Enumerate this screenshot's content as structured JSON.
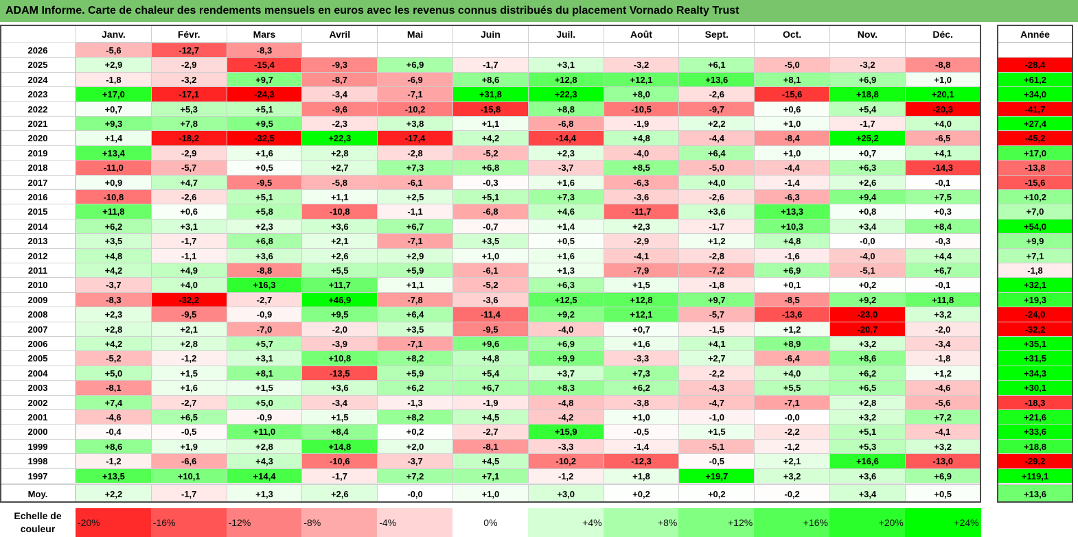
{
  "title": "ADAM Informe. Carte de chaleur des rendements mensuels en euros avec les revenus connus distribués du placement Vornado Realty Trust",
  "chart_data": {
    "type": "heatmap",
    "columns": [
      "Janv.",
      "Févr.",
      "Mars",
      "Avril",
      "Mai",
      "Juin",
      "Juil.",
      "Août",
      "Sept.",
      "Oct.",
      "Nov.",
      "Déc."
    ],
    "year_header": "Année",
    "rows": [
      {
        "year": "2026",
        "months": [
          "-5,6",
          "-12,7",
          "-8,3",
          "",
          "",
          "",
          "",
          "",
          "",
          "",
          "",
          ""
        ],
        "annual": ""
      },
      {
        "year": "2025",
        "months": [
          "+2,9",
          "-2,9",
          "-15,4",
          "-9,3",
          "+6,9",
          "-1,7",
          "+3,1",
          "-3,2",
          "+6,1",
          "-5,0",
          "-3,2",
          "-8,8"
        ],
        "annual": "-28,4"
      },
      {
        "year": "2024",
        "months": [
          "-1,8",
          "-3,2",
          "+9,7",
          "-8,7",
          "-6,9",
          "+8,6",
          "+12,8",
          "+12,1",
          "+13,6",
          "+8,1",
          "+6,9",
          "+1,0"
        ],
        "annual": "+61,2"
      },
      {
        "year": "2023",
        "months": [
          "+17,0",
          "-17,1",
          "-24,3",
          "-3,4",
          "-7,1",
          "+31,8",
          "+22,3",
          "+8,0",
          "-2,6",
          "-15,6",
          "+18,8",
          "+20,1"
        ],
        "annual": "+34,0"
      },
      {
        "year": "2022",
        "months": [
          "+0,7",
          "+5,3",
          "+5,1",
          "-9,6",
          "-10,2",
          "-15,8",
          "+8,8",
          "-10,5",
          "-9,7",
          "+0,6",
          "+5,4",
          "-20,3"
        ],
        "annual": "-41,7"
      },
      {
        "year": "2021",
        "months": [
          "+9,3",
          "+7,8",
          "+9,5",
          "-2,3",
          "+3,8",
          "+1,1",
          "-6,8",
          "-1,9",
          "+2,2",
          "+1,0",
          "-1,7",
          "+4,0"
        ],
        "annual": "+27,4"
      },
      {
        "year": "2020",
        "months": [
          "+1,4",
          "-18,2",
          "-32,5",
          "+22,3",
          "-17,4",
          "+4,2",
          "-14,4",
          "+4,8",
          "-4,4",
          "-8,4",
          "+25,2",
          "-6,5"
        ],
        "annual": "-45,2"
      },
      {
        "year": "2019",
        "months": [
          "+13,4",
          "-2,9",
          "+1,6",
          "+2,8",
          "-2,8",
          "-5,2",
          "+2,3",
          "-4,0",
          "+6,4",
          "+1,0",
          "+0,7",
          "+4,1"
        ],
        "annual": "+17,0"
      },
      {
        "year": "2018",
        "months": [
          "-11,0",
          "-5,7",
          "+0,5",
          "+2,7",
          "+7,3",
          "+6,8",
          "-3,7",
          "+8,5",
          "-5,0",
          "-4,4",
          "+6,3",
          "-14,3"
        ],
        "annual": "-13,8"
      },
      {
        "year": "2017",
        "months": [
          "+0,9",
          "+4,7",
          "-9,5",
          "-5,8",
          "-6,1",
          "-0,3",
          "+1,6",
          "-6,3",
          "+4,0",
          "-1,4",
          "+2,6",
          "-0,1"
        ],
        "annual": "-15,6"
      },
      {
        "year": "2016",
        "months": [
          "-10,8",
          "-2,6",
          "+5,1",
          "+1,1",
          "+2,5",
          "+5,1",
          "+7,3",
          "-3,6",
          "-2,6",
          "-6,3",
          "+9,4",
          "+7,5"
        ],
        "annual": "+10,2"
      },
      {
        "year": "2015",
        "months": [
          "+11,8",
          "+0,6",
          "+5,8",
          "-10,8",
          "-1,1",
          "-6,8",
          "+4,6",
          "-11,7",
          "+3,6",
          "+13,3",
          "+0,8",
          "+0,3"
        ],
        "annual": "+7,0"
      },
      {
        "year": "2014",
        "months": [
          "+6,2",
          "+3,1",
          "+2,3",
          "+3,6",
          "+6,7",
          "-0,7",
          "+1,4",
          "+2,3",
          "-1,7",
          "+10,3",
          "+3,4",
          "+8,4"
        ],
        "annual": "+54,0"
      },
      {
        "year": "2013",
        "months": [
          "+3,5",
          "-1,7",
          "+6,8",
          "+2,1",
          "-7,1",
          "+3,5",
          "+0,5",
          "-2,9",
          "+1,2",
          "+4,8",
          "-0,0",
          "-0,3"
        ],
        "annual": "+9,9"
      },
      {
        "year": "2012",
        "months": [
          "+4,8",
          "-1,1",
          "+3,6",
          "+2,6",
          "+2,9",
          "+1,0",
          "+1,6",
          "-4,1",
          "-2,8",
          "-1,6",
          "-4,0",
          "+4,4"
        ],
        "annual": "+7,1"
      },
      {
        "year": "2011",
        "months": [
          "+4,2",
          "+4,9",
          "-8,8",
          "+5,5",
          "+5,9",
          "-6,1",
          "+1,3",
          "-7,9",
          "-7,2",
          "+6,9",
          "-5,1",
          "+6,7"
        ],
        "annual": "-1,8"
      },
      {
        "year": "2010",
        "months": [
          "-3,7",
          "+4,0",
          "+16,3",
          "+11,7",
          "+1,1",
          "-5,2",
          "+6,3",
          "+1,5",
          "-1,8",
          "+0,1",
          "+0,2",
          "-0,1"
        ],
        "annual": "+32,1"
      },
      {
        "year": "2009",
        "months": [
          "-8,3",
          "-32,2",
          "-2,7",
          "+46,9",
          "-7,8",
          "-3,6",
          "+12,5",
          "+12,8",
          "+9,7",
          "-8,5",
          "+9,2",
          "+11,8"
        ],
        "annual": "+19,3"
      },
      {
        "year": "2008",
        "months": [
          "+2,3",
          "-9,5",
          "-0,9",
          "+9,5",
          "+6,4",
          "-11,4",
          "+9,2",
          "+12,1",
          "-5,7",
          "-13,6",
          "-23,0",
          "+3,2"
        ],
        "annual": "-24,0"
      },
      {
        "year": "2007",
        "months": [
          "+2,8",
          "+2,1",
          "-7,0",
          "-2,0",
          "+3,5",
          "-9,5",
          "-4,0",
          "+0,7",
          "-1,5",
          "+1,2",
          "-20,7",
          "-2,0"
        ],
        "annual": "-32,2"
      },
      {
        "year": "2006",
        "months": [
          "+4,2",
          "+2,8",
          "+5,7",
          "-3,9",
          "-7,1",
          "+9,6",
          "+6,9",
          "+1,6",
          "+4,1",
          "+8,9",
          "+3,2",
          "-3,4"
        ],
        "annual": "+35,1"
      },
      {
        "year": "2005",
        "months": [
          "-5,2",
          "-1,2",
          "+3,1",
          "+10,8",
          "+8,2",
          "+4,8",
          "+9,9",
          "-3,3",
          "+2,7",
          "-6,4",
          "+8,6",
          "-1,8"
        ],
        "annual": "+31,5"
      },
      {
        "year": "2004",
        "months": [
          "+5,0",
          "+1,5",
          "+8,1",
          "-13,5",
          "+5,9",
          "+5,4",
          "+3,7",
          "+7,3",
          "-2,2",
          "+4,0",
          "+6,2",
          "+1,2"
        ],
        "annual": "+34,3"
      },
      {
        "year": "2003",
        "months": [
          "-8,1",
          "+1,6",
          "+1,5",
          "+3,6",
          "+6,2",
          "+6,7",
          "+8,3",
          "+6,2",
          "-4,3",
          "+5,5",
          "+6,5",
          "-4,6"
        ],
        "annual": "+30,1"
      },
      {
        "year": "2002",
        "months": [
          "+7,4",
          "-2,7",
          "+5,0",
          "-3,4",
          "-1,3",
          "-1,9",
          "-4,8",
          "-3,8",
          "-4,7",
          "-7,1",
          "+2,8",
          "-5,6"
        ],
        "annual": "-18,3"
      },
      {
        "year": "2001",
        "months": [
          "-4,6",
          "+6,5",
          "-0,9",
          "+1,5",
          "+8,2",
          "+4,5",
          "-4,2",
          "+1,0",
          "-1,0",
          "-0,0",
          "+3,2",
          "+7,2"
        ],
        "annual": "+21,6"
      },
      {
        "year": "2000",
        "months": [
          "-0,4",
          "-0,5",
          "+11,0",
          "+8,4",
          "+0,2",
          "-2,7",
          "+15,9",
          "-0,5",
          "+1,5",
          "-2,2",
          "+5,1",
          "-4,1"
        ],
        "annual": "+33,6"
      },
      {
        "year": "1999",
        "months": [
          "+8,6",
          "+1,9",
          "+2,8",
          "+14,8",
          "+2,0",
          "-8,1",
          "-3,3",
          "-1,4",
          "-5,1",
          "-1,2",
          "+5,3",
          "+3,2"
        ],
        "annual": "+18,8"
      },
      {
        "year": "1998",
        "months": [
          "-1,2",
          "-6,6",
          "+4,3",
          "-10,6",
          "-3,7",
          "+4,5",
          "-10,2",
          "-12,3",
          "-0,5",
          "+2,1",
          "+16,6",
          "-13,0"
        ],
        "annual": "-29,2"
      },
      {
        "year": "1997",
        "months": [
          "+13,5",
          "+10,1",
          "+14,4",
          "-1,7",
          "+7,2",
          "+7,1",
          "-1,2",
          "+1,8",
          "+19,7",
          "+3,2",
          "+3,6",
          "+6,9"
        ],
        "annual": "+119,1"
      }
    ],
    "average": {
      "label": "Moy.",
      "months": [
        "+2,2",
        "-1,7",
        "+1,3",
        "+2,6",
        "-0,0",
        "+1,0",
        "+3,0",
        "+0,2",
        "+0,2",
        "-0,2",
        "+3,4",
        "+0,5"
      ],
      "annual": "+13,6"
    },
    "scale": {
      "label_line1": "Echelle de",
      "label_line2": "couleur",
      "steps": [
        "-20%",
        "-16%",
        "-12%",
        "-8%",
        "-4%",
        "0%",
        "+4%",
        "+8%",
        "+12%",
        "+16%",
        "+20%",
        "+24%"
      ],
      "step_values": [
        -20,
        -16,
        -12,
        -8,
        -4,
        0,
        4,
        8,
        12,
        16,
        20,
        24
      ]
    },
    "colors": {
      "negative": "#ff0000",
      "neutral": "#ffffff",
      "positive": "#00ff00"
    }
  }
}
